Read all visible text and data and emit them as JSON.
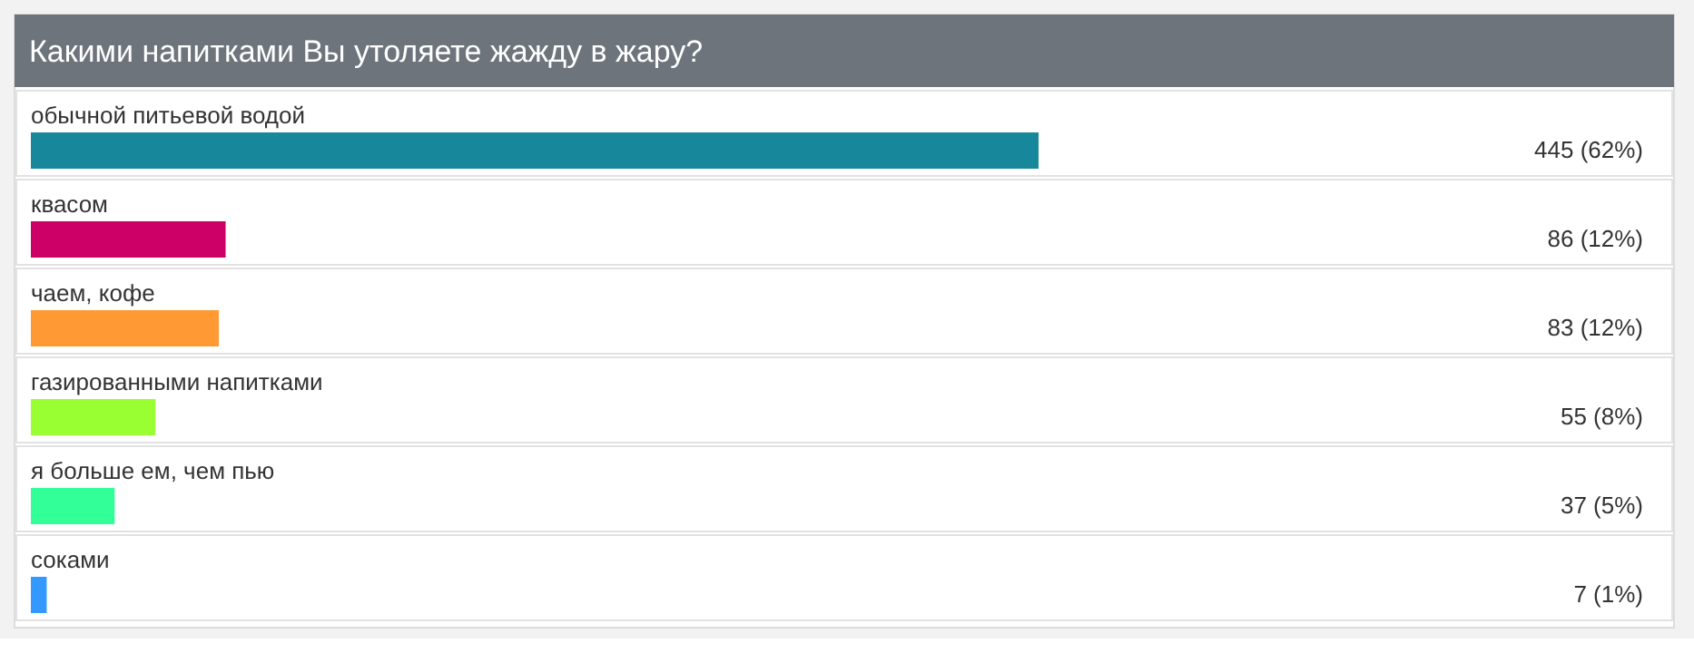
{
  "chart_data": {
    "type": "bar",
    "orientation": "horizontal",
    "title": "Какими напитками Вы утоляете жажду в жару?",
    "categories": [
      "обычной питьевой водой",
      "квасом",
      "чаем, кофе",
      "газированными напитками",
      "я больше ем, чем пью",
      "соками"
    ],
    "values": [
      445,
      86,
      83,
      55,
      37,
      7
    ],
    "colors": [
      "#17889c",
      "#cc0066",
      "#ff9933",
      "#99ff33",
      "#33ff99",
      "#3399ff"
    ],
    "value_labels": [
      "445 (62%)",
      "86 (12%)",
      "83 (12%)",
      "55 (8%)",
      "37 (5%)",
      "7 (1%)"
    ]
  }
}
